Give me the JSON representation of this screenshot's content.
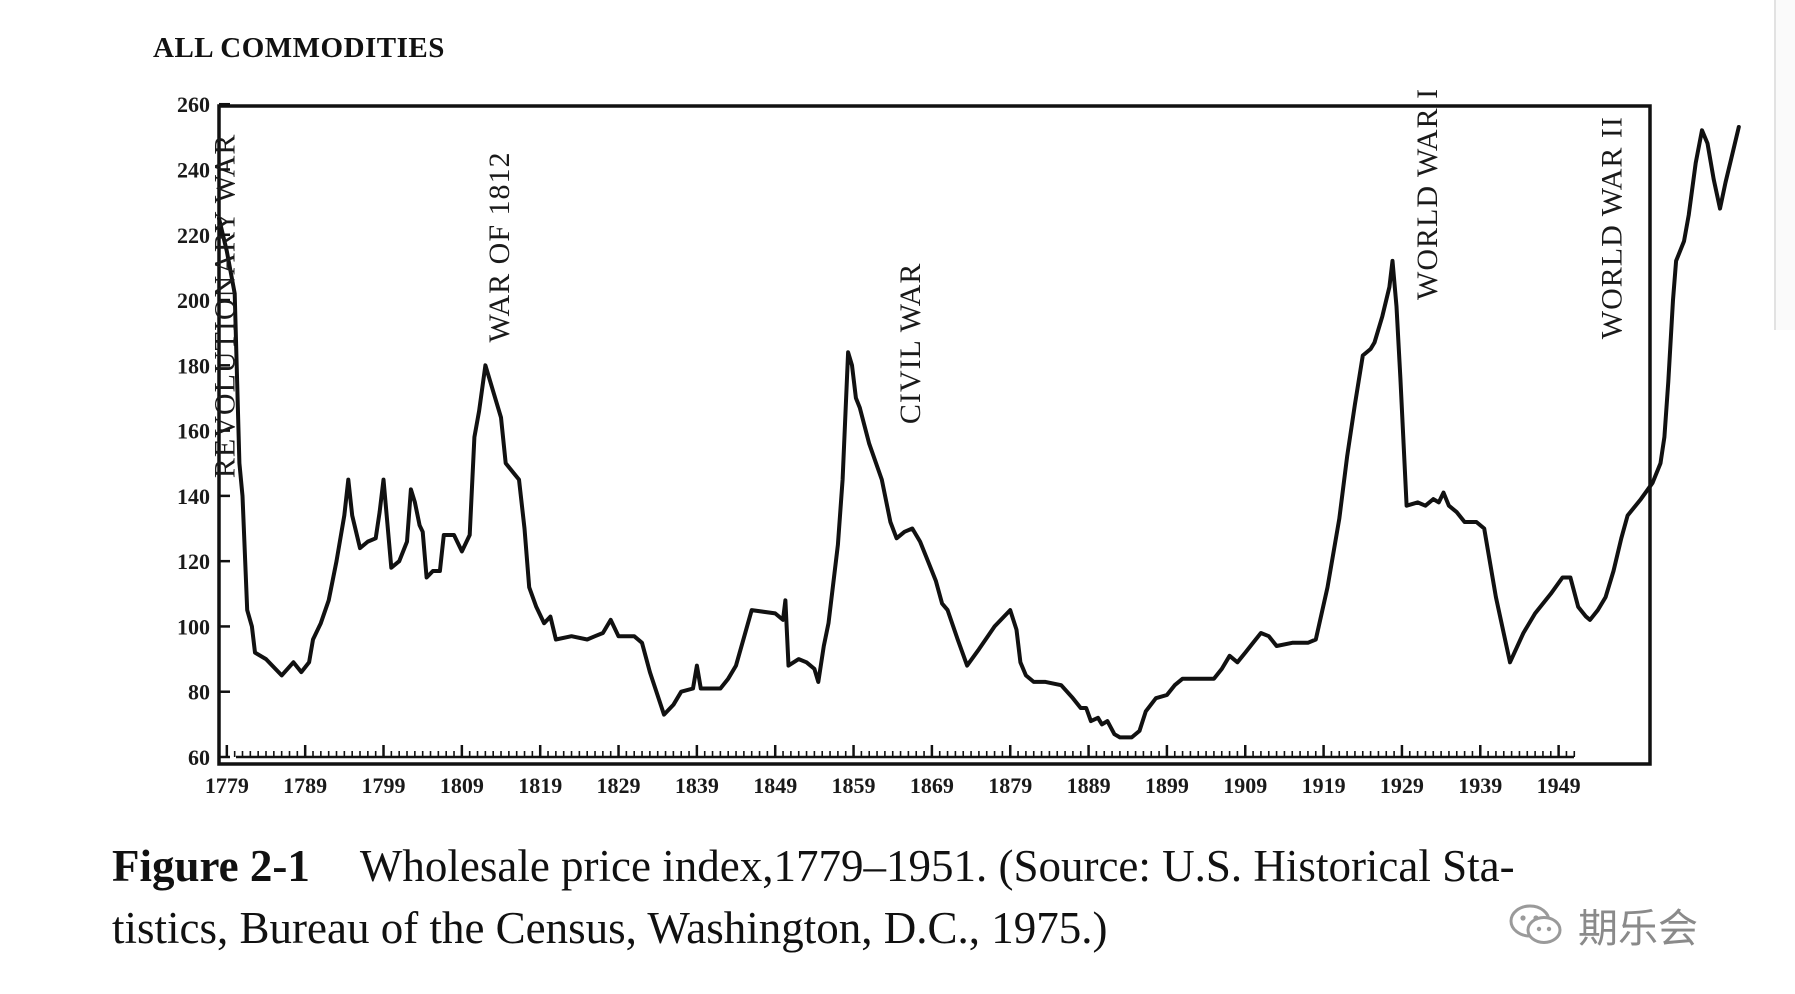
{
  "chart_data": {
    "type": "line",
    "title": "ALL COMMODITIES",
    "xlabel": "",
    "ylabel": "",
    "xlim": [
      1778,
      1963
    ],
    "ylim": [
      60,
      260
    ],
    "x_ticks": [
      1779,
      1789,
      1799,
      1809,
      1819,
      1829,
      1839,
      1849,
      1859,
      1869,
      1879,
      1889,
      1899,
      1909,
      1919,
      1929,
      1939,
      1949
    ],
    "y_ticks": [
      60,
      80,
      100,
      120,
      140,
      160,
      180,
      200,
      220,
      240,
      260
    ],
    "grid": false,
    "line_color": "#111111",
    "series": [
      {
        "name": "",
        "points": [
          [
            1778,
            225
          ],
          [
            1779,
            215
          ],
          [
            1780,
            202
          ],
          [
            1780.6,
            150
          ],
          [
            1781,
            140
          ],
          [
            1781.6,
            105
          ],
          [
            1782.2,
            100
          ],
          [
            1782.6,
            92
          ],
          [
            1784,
            90
          ],
          [
            1786,
            85
          ],
          [
            1787.5,
            89
          ],
          [
            1788.5,
            86
          ],
          [
            1789.5,
            89
          ],
          [
            1790,
            96
          ],
          [
            1791,
            101
          ],
          [
            1792,
            108
          ],
          [
            1793,
            120
          ],
          [
            1794,
            134
          ],
          [
            1794.5,
            145
          ],
          [
            1795,
            134
          ],
          [
            1796,
            124
          ],
          [
            1797,
            126
          ],
          [
            1798,
            127
          ],
          [
            1798.5,
            135
          ],
          [
            1799,
            145
          ],
          [
            1800,
            118
          ],
          [
            1801,
            120
          ],
          [
            1802,
            126
          ],
          [
            1802.5,
            142
          ],
          [
            1803,
            138
          ],
          [
            1803.6,
            131
          ],
          [
            1804,
            129
          ],
          [
            1804.5,
            115
          ],
          [
            1805.3,
            117
          ],
          [
            1806.2,
            117
          ],
          [
            1806.7,
            128
          ],
          [
            1808,
            128
          ],
          [
            1809,
            123
          ],
          [
            1810,
            128
          ],
          [
            1810.6,
            158
          ],
          [
            1811.2,
            166
          ],
          [
            1812,
            180
          ],
          [
            1813,
            172
          ],
          [
            1814,
            164
          ],
          [
            1814.6,
            150
          ],
          [
            1815.6,
            147
          ],
          [
            1816.3,
            145
          ],
          [
            1817,
            130
          ],
          [
            1817.6,
            112
          ],
          [
            1818.5,
            106
          ],
          [
            1819.5,
            101
          ],
          [
            1820.3,
            103
          ],
          [
            1821,
            96
          ],
          [
            1823,
            97
          ],
          [
            1825,
            96
          ],
          [
            1826,
            97
          ],
          [
            1827,
            98
          ],
          [
            1828,
            102
          ],
          [
            1829,
            97
          ],
          [
            1831,
            97
          ],
          [
            1832,
            95
          ],
          [
            1833,
            86
          ],
          [
            1834.8,
            73
          ],
          [
            1836,
            76
          ],
          [
            1837,
            80
          ],
          [
            1838.5,
            81
          ],
          [
            1839,
            88
          ],
          [
            1839.5,
            81
          ],
          [
            1842,
            81
          ],
          [
            1843,
            84
          ],
          [
            1844,
            88
          ],
          [
            1846,
            105
          ],
          [
            1849,
            104
          ],
          [
            1850,
            102
          ],
          [
            1850.3,
            108
          ],
          [
            1850.7,
            88
          ],
          [
            1852,
            90
          ],
          [
            1853,
            89
          ],
          [
            1854,
            87
          ],
          [
            1854.5,
            83
          ],
          [
            1855.2,
            94
          ],
          [
            1855.8,
            101
          ],
          [
            1857,
            125
          ],
          [
            1857.6,
            145
          ],
          [
            1858.3,
            184
          ],
          [
            1858.8,
            180
          ],
          [
            1859.3,
            170
          ],
          [
            1859.8,
            167
          ],
          [
            1861,
            156
          ],
          [
            1862.6,
            145
          ],
          [
            1863.7,
            132
          ],
          [
            1864.5,
            127
          ],
          [
            1865.5,
            129
          ],
          [
            1866.5,
            130
          ],
          [
            1867.5,
            126
          ],
          [
            1868.5,
            120
          ],
          [
            1869.5,
            114
          ],
          [
            1870.3,
            107
          ],
          [
            1871,
            105
          ],
          [
            1872.3,
            96
          ],
          [
            1873.5,
            88
          ],
          [
            1875,
            93
          ],
          [
            1877,
            100
          ],
          [
            1879,
            105
          ],
          [
            1879.8,
            99
          ],
          [
            1880.3,
            89
          ],
          [
            1881,
            85
          ],
          [
            1882,
            83
          ],
          [
            1883.5,
            83
          ],
          [
            1885.5,
            82
          ],
          [
            1887,
            78
          ],
          [
            1888,
            75
          ],
          [
            1888.7,
            75
          ],
          [
            1889.3,
            71
          ],
          [
            1890.2,
            72
          ],
          [
            1890.7,
            70
          ],
          [
            1891.4,
            71
          ],
          [
            1892.3,
            67
          ],
          [
            1893,
            66
          ],
          [
            1894.5,
            66
          ],
          [
            1895.5,
            68
          ],
          [
            1896.3,
            74
          ],
          [
            1897.6,
            78
          ],
          [
            1899,
            79
          ],
          [
            1900,
            82
          ],
          [
            1901,
            84
          ],
          [
            1903,
            84
          ],
          [
            1905,
            84
          ],
          [
            1906,
            87
          ],
          [
            1907,
            91
          ],
          [
            1908,
            89
          ],
          [
            1909,
            92
          ],
          [
            1910,
            95
          ],
          [
            1911,
            98
          ],
          [
            1912,
            97
          ],
          [
            1913,
            94
          ],
          [
            1915,
            95
          ],
          [
            1917,
            95
          ],
          [
            1918,
            96
          ],
          [
            1919.5,
            112
          ],
          [
            1921,
            133
          ],
          [
            1922,
            152
          ],
          [
            1923,
            168
          ],
          [
            1924,
            183
          ],
          [
            1925,
            185
          ],
          [
            1925.5,
            187
          ],
          [
            1926.5,
            195
          ],
          [
            1927.4,
            204
          ],
          [
            1927.8,
            212
          ],
          [
            1928.3,
            198
          ],
          [
            1928.8,
            176
          ],
          [
            1929.6,
            137
          ],
          [
            1931,
            138
          ],
          [
            1932,
            137
          ],
          [
            1933,
            139
          ],
          [
            1933.7,
            138
          ],
          [
            1934.3,
            141
          ],
          [
            1935,
            137
          ],
          [
            1936,
            135
          ],
          [
            1937,
            132
          ],
          [
            1938.5,
            132
          ],
          [
            1939.5,
            130
          ],
          [
            1941,
            109
          ],
          [
            1942.8,
            89
          ],
          [
            1944.5,
            98
          ],
          [
            1946,
            104
          ],
          [
            1948,
            110
          ],
          [
            1949.5,
            115
          ],
          [
            1950.5,
            115
          ],
          [
            1951.5,
            106
          ],
          [
            1952.5,
            103
          ],
          [
            1953,
            102
          ],
          [
            1954,
            105
          ],
          [
            1955,
            109
          ],
          [
            1956,
            117
          ],
          [
            1957,
            127
          ],
          [
            1957.8,
            134
          ],
          [
            1959.5,
            139
          ],
          [
            1961,
            144
          ],
          [
            1962,
            150
          ],
          [
            1962.5,
            158
          ],
          [
            1963,
            175
          ],
          [
            1963.6,
            200
          ],
          [
            1964,
            212
          ],
          [
            1965,
            218
          ],
          [
            1965.6,
            226
          ],
          [
            1966.5,
            242
          ],
          [
            1967.3,
            252
          ],
          [
            1968,
            248
          ],
          [
            1968.8,
            237
          ],
          [
            1969.6,
            228
          ],
          [
            1970.3,
            236
          ],
          [
            1971,
            243
          ],
          [
            1972,
            253
          ]
        ]
      }
    ],
    "annotations": [
      {
        "text": "REVOLUTIONARY WAR",
        "x": 1780,
        "y": 251,
        "anchor": "start-top"
      },
      {
        "text": "WAR OF 1812",
        "x": 1815,
        "y": 187,
        "anchor": "end-bottom"
      },
      {
        "text": "CIVIL WAR",
        "x": 1867.5,
        "y": 162,
        "anchor": "end-bottom"
      },
      {
        "text": "WORLD WAR I",
        "x": 1933.5,
        "y": 200,
        "anchor": "end-bottom"
      },
      {
        "text": "WORLD WAR II",
        "x": 1957,
        "y": 188,
        "anchor": "end-bottom"
      }
    ]
  },
  "caption": {
    "label": "Figure 2-1",
    "text": "Wholesale price index,1779–1951. (Source: U.S. Historical Sta-",
    "text_line2": "tistics, Bureau of the Census, Washington, D.C., 1975.)"
  },
  "watermark": {
    "text": "期乐会",
    "icon": "wechat-icon"
  }
}
